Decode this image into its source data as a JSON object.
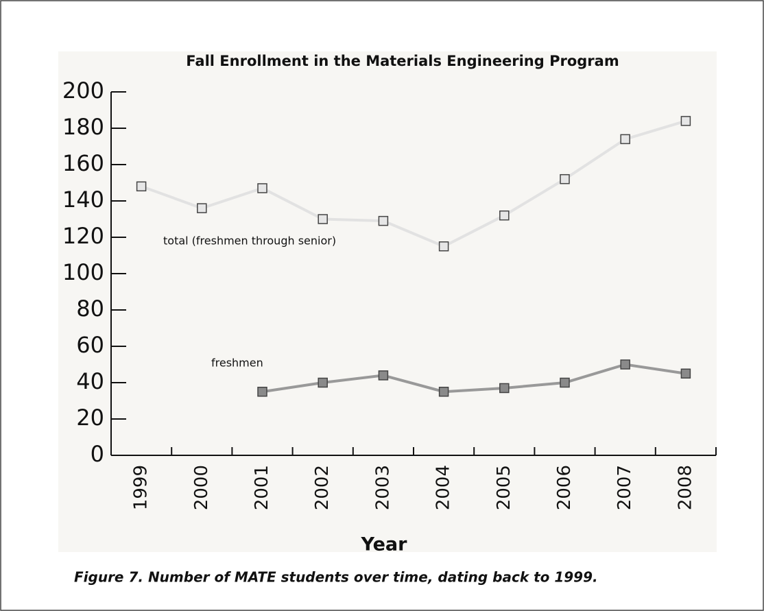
{
  "chart_data": {
    "type": "line",
    "title": "Fall Enrollment in the Materials Engineering Program",
    "x_label": "Year",
    "caption": "Figure 7. Number of MATE students over time, dating back to 1999.",
    "categories": [
      "1999",
      "2000",
      "2001",
      "2002",
      "2003",
      "2004",
      "2005",
      "2006",
      "2007",
      "2008"
    ],
    "series": [
      {
        "name": "total (freshmen through senior)",
        "color": "#e2e2e2",
        "marker_color": "#e6e6e6",
        "values": [
          148,
          136,
          147,
          130,
          129,
          115,
          132,
          152,
          174,
          184
        ]
      },
      {
        "name": "freshmen",
        "color": "#999999",
        "marker_color": "#8a8a8a",
        "values": [
          null,
          null,
          35,
          40,
          44,
          35,
          37,
          40,
          50,
          45
        ]
      }
    ],
    "ylim": [
      0,
      200
    ],
    "yticks": [
      0,
      20,
      40,
      60,
      80,
      100,
      120,
      140,
      160,
      180,
      200
    ]
  }
}
